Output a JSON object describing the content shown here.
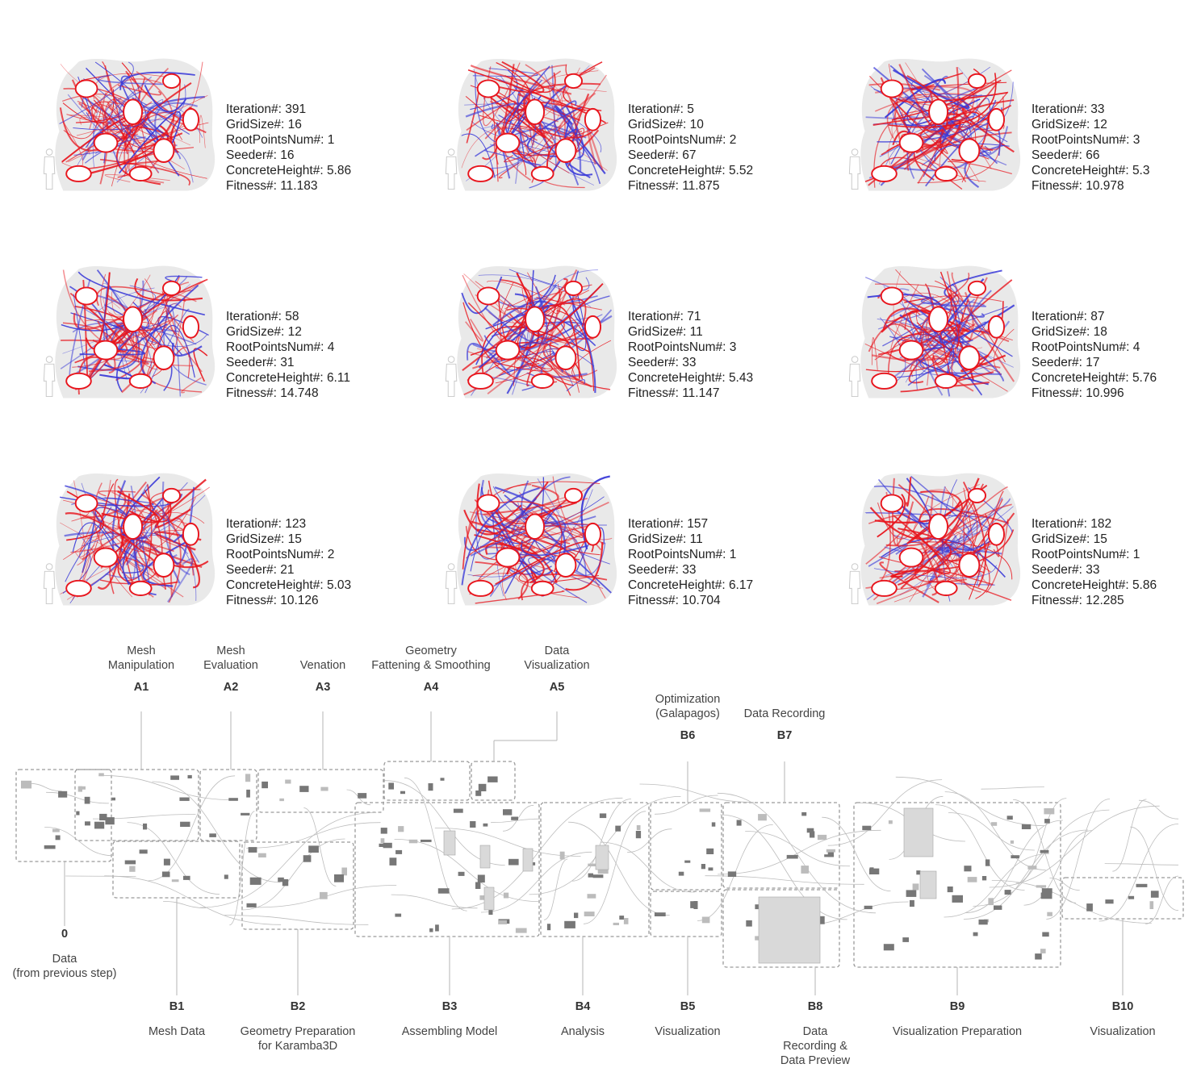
{
  "iterations": [
    {
      "iteration": "391",
      "grid": "16",
      "root": "1",
      "seeder": "16",
      "height": "5.86",
      "fitness": "11.183"
    },
    {
      "iteration": "5",
      "grid": "10",
      "root": "2",
      "seeder": "67",
      "height": "5.52",
      "fitness": "11.875"
    },
    {
      "iteration": "33",
      "grid": "12",
      "root": "3",
      "seeder": "66",
      "height": "5.3",
      "fitness": "10.978"
    },
    {
      "iteration": "58",
      "grid": "12",
      "root": "4",
      "seeder": "31",
      "height": "6.11",
      "fitness": "14.748"
    },
    {
      "iteration": "71",
      "grid": "11",
      "root": "3",
      "seeder": "33",
      "height": "5.43",
      "fitness": "11.147"
    },
    {
      "iteration": "87",
      "grid": "18",
      "root": "4",
      "seeder": "17",
      "height": "5.76",
      "fitness": "10.996"
    },
    {
      "iteration": "123",
      "grid": "15",
      "root": "2",
      "seeder": "21",
      "height": "5.03",
      "fitness": "10.126"
    },
    {
      "iteration": "157",
      "grid": "11",
      "root": "1",
      "seeder": "33",
      "height": "6.17",
      "fitness": "10.704"
    },
    {
      "iteration": "182",
      "grid": "15",
      "root": "1",
      "seeder": "33",
      "height": "5.86",
      "fitness": "12.285"
    }
  ],
  "param_labels": {
    "iteration": "Iteration#: ",
    "grid": "GridSize#: ",
    "root": "RootPointsNum#: ",
    "seeder": "Seeder#: ",
    "height": "ConcreteHeight#: ",
    "fitness": "Fitness#: "
  },
  "top_steps": [
    {
      "code": "A1",
      "lines": [
        "Mesh",
        "Manipulation"
      ]
    },
    {
      "code": "A2",
      "lines": [
        "Mesh",
        "Evaluation"
      ]
    },
    {
      "code": "A3",
      "lines": [
        "Venation"
      ]
    },
    {
      "code": "A4",
      "lines": [
        "Geometry",
        "Fattening & Smoothing"
      ]
    },
    {
      "code": "A5",
      "lines": [
        "Data",
        "Visualization"
      ]
    },
    {
      "code": "B6",
      "lines": [
        "Optimization",
        "(Galapagos)"
      ]
    },
    {
      "code": "B7",
      "lines": [
        "Data Recording"
      ]
    }
  ],
  "data_step": {
    "code": "0",
    "lines": [
      "Data",
      "(from previous step)"
    ]
  },
  "bottom_steps": [
    {
      "code": "B1",
      "lines": [
        "Mesh Data"
      ]
    },
    {
      "code": "B2",
      "lines": [
        "Geometry Preparation",
        "for Karamba3D"
      ]
    },
    {
      "code": "B3",
      "lines": [
        "Assembling Model"
      ]
    },
    {
      "code": "B4",
      "lines": [
        "Analysis"
      ]
    },
    {
      "code": "B5",
      "lines": [
        "Visualization"
      ]
    },
    {
      "code": "B8",
      "lines": [
        "Data",
        "Recording &",
        "Data Preview"
      ]
    },
    {
      "code": "B9",
      "lines": [
        "Visualization Preparation"
      ]
    },
    {
      "code": "B10",
      "lines": [
        "Visualization"
      ]
    }
  ],
  "colors": {
    "red": "#e8141c",
    "blue": "#3a3ad8",
    "box": "#9a9a9a",
    "wire": "#bdbdbd",
    "node": "#777777"
  }
}
